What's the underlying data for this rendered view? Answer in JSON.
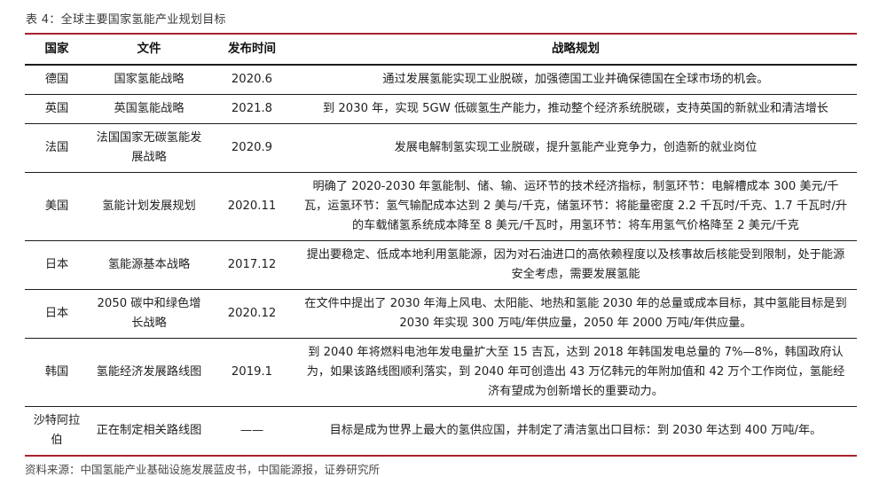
{
  "title": "表 4：全球主要国家氢能产业规划目标",
  "colors": {
    "accent_red": "#a8232d",
    "rule_black": "#1c1c1c",
    "text": "#1f1f1f"
  },
  "table": {
    "headers": [
      "国家",
      "文件",
      "发布时间",
      "战略规划"
    ],
    "rows": [
      {
        "country": "德国",
        "document": "国家氢能战略",
        "date": "2020.6",
        "plan": "通过发展氢能实现工业脱碳，加强德国工业并确保德国在全球市场的机会。"
      },
      {
        "country": "英国",
        "document": "英国氢能战略",
        "date": "2021.8",
        "plan": "到 2030 年，实现 5GW 低碳氢生产能力，推动整个经济系统脱碳，支持英国的新就业和清洁增长"
      },
      {
        "country": "法国",
        "document": "法国国家无碳氢能发展战略",
        "date": "2020.9",
        "plan": "发展电解制氢实现工业脱碳，提升氢能产业竞争力，创造新的就业岗位"
      },
      {
        "country": "美国",
        "document": "氢能计划发展规划",
        "date": "2020.11",
        "plan": "明确了 2020-2030 年氢能制、储、输、运环节的技术经济指标，制氢环节：电解槽成本 300 美元/千瓦，运氢环节：氢气输配成本达到 2 美与/千克，储氢环节：将能量密度 2.2 千瓦时/千克、1.7 千瓦时/升的车载储氢系统成本降至 8 美元/千瓦时，用氢环节：将车用氢气价格降至 2 美元/千克"
      },
      {
        "country": "日本",
        "document": "氢能源基本战略",
        "date": "2017.12",
        "plan": "提出要稳定、低成本地利用氢能源，因为对石油进口的高依赖程度以及核事故后核能受到限制，处于能源安全考虑，需要发展氢能"
      },
      {
        "country": "日本",
        "document": "2050 碳中和绿色增长战略",
        "date": "2020.12",
        "plan": "在文件中提出了 2030 年海上风电、太阳能、地热和氢能 2030 年的总量或成本目标，其中氢能目标是到 2030 年实现 300 万吨/年供应量，2050 年 2000 万吨/年供应量。"
      },
      {
        "country": "韩国",
        "document": "氢能经济发展路线图",
        "date": "2019.1",
        "plan": "到 2040 年将燃料电池年发电量扩大至 15 吉瓦，达到 2018 年韩国发电总量的 7%—8%，韩国政府认为，如果该路线图顺利落实，到 2040 年可创造出 43 万亿韩元的年附加值和 42 万个工作岗位，氢能经济有望成为创新增长的重要动力。"
      },
      {
        "country": "沙特阿拉伯",
        "document": "正在制定相关路线图",
        "date": "——",
        "plan": "目标是成为世界上最大的氢供应国，并制定了清洁氢出口目标：到 2030 年达到 400 万吨/年。"
      }
    ]
  },
  "footer": {
    "source_note": "资料来源：中国氢能产业基础设施发展蓝皮书，中国能源报，证券研究所"
  }
}
